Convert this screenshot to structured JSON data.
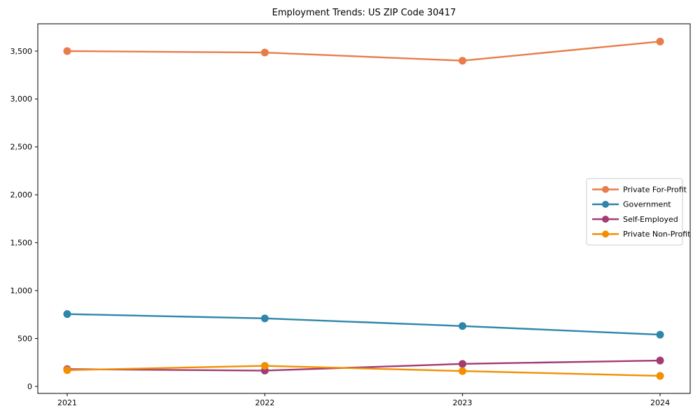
{
  "chart_data": {
    "type": "line",
    "title": "Employment Trends: US ZIP Code 30417",
    "x": [
      "2021",
      "2022",
      "2023",
      "2024"
    ],
    "series": [
      {
        "name": "Private For-Profit",
        "color": "#E77D4A",
        "values": [
          3500,
          3485,
          3400,
          3600
        ]
      },
      {
        "name": "Government",
        "color": "#2E86AB",
        "values": [
          755,
          710,
          630,
          540
        ]
      },
      {
        "name": "Self-Employed",
        "color": "#A23B72",
        "values": [
          180,
          165,
          235,
          270
        ]
      },
      {
        "name": "Private Non-Profit",
        "color": "#F18F01",
        "values": [
          170,
          215,
          160,
          110
        ]
      }
    ],
    "yticks": [
      0,
      500,
      1000,
      1500,
      2000,
      2500,
      3000,
      3500
    ],
    "ylim": [
      -73,
      3785
    ],
    "xlabel": "",
    "ylabel": "",
    "grid": false,
    "marker": "circle",
    "legend_position": "center-right",
    "axis_color": "#000000",
    "background_color": "#ffffff",
    "legend_border_color": "#cccccc"
  }
}
